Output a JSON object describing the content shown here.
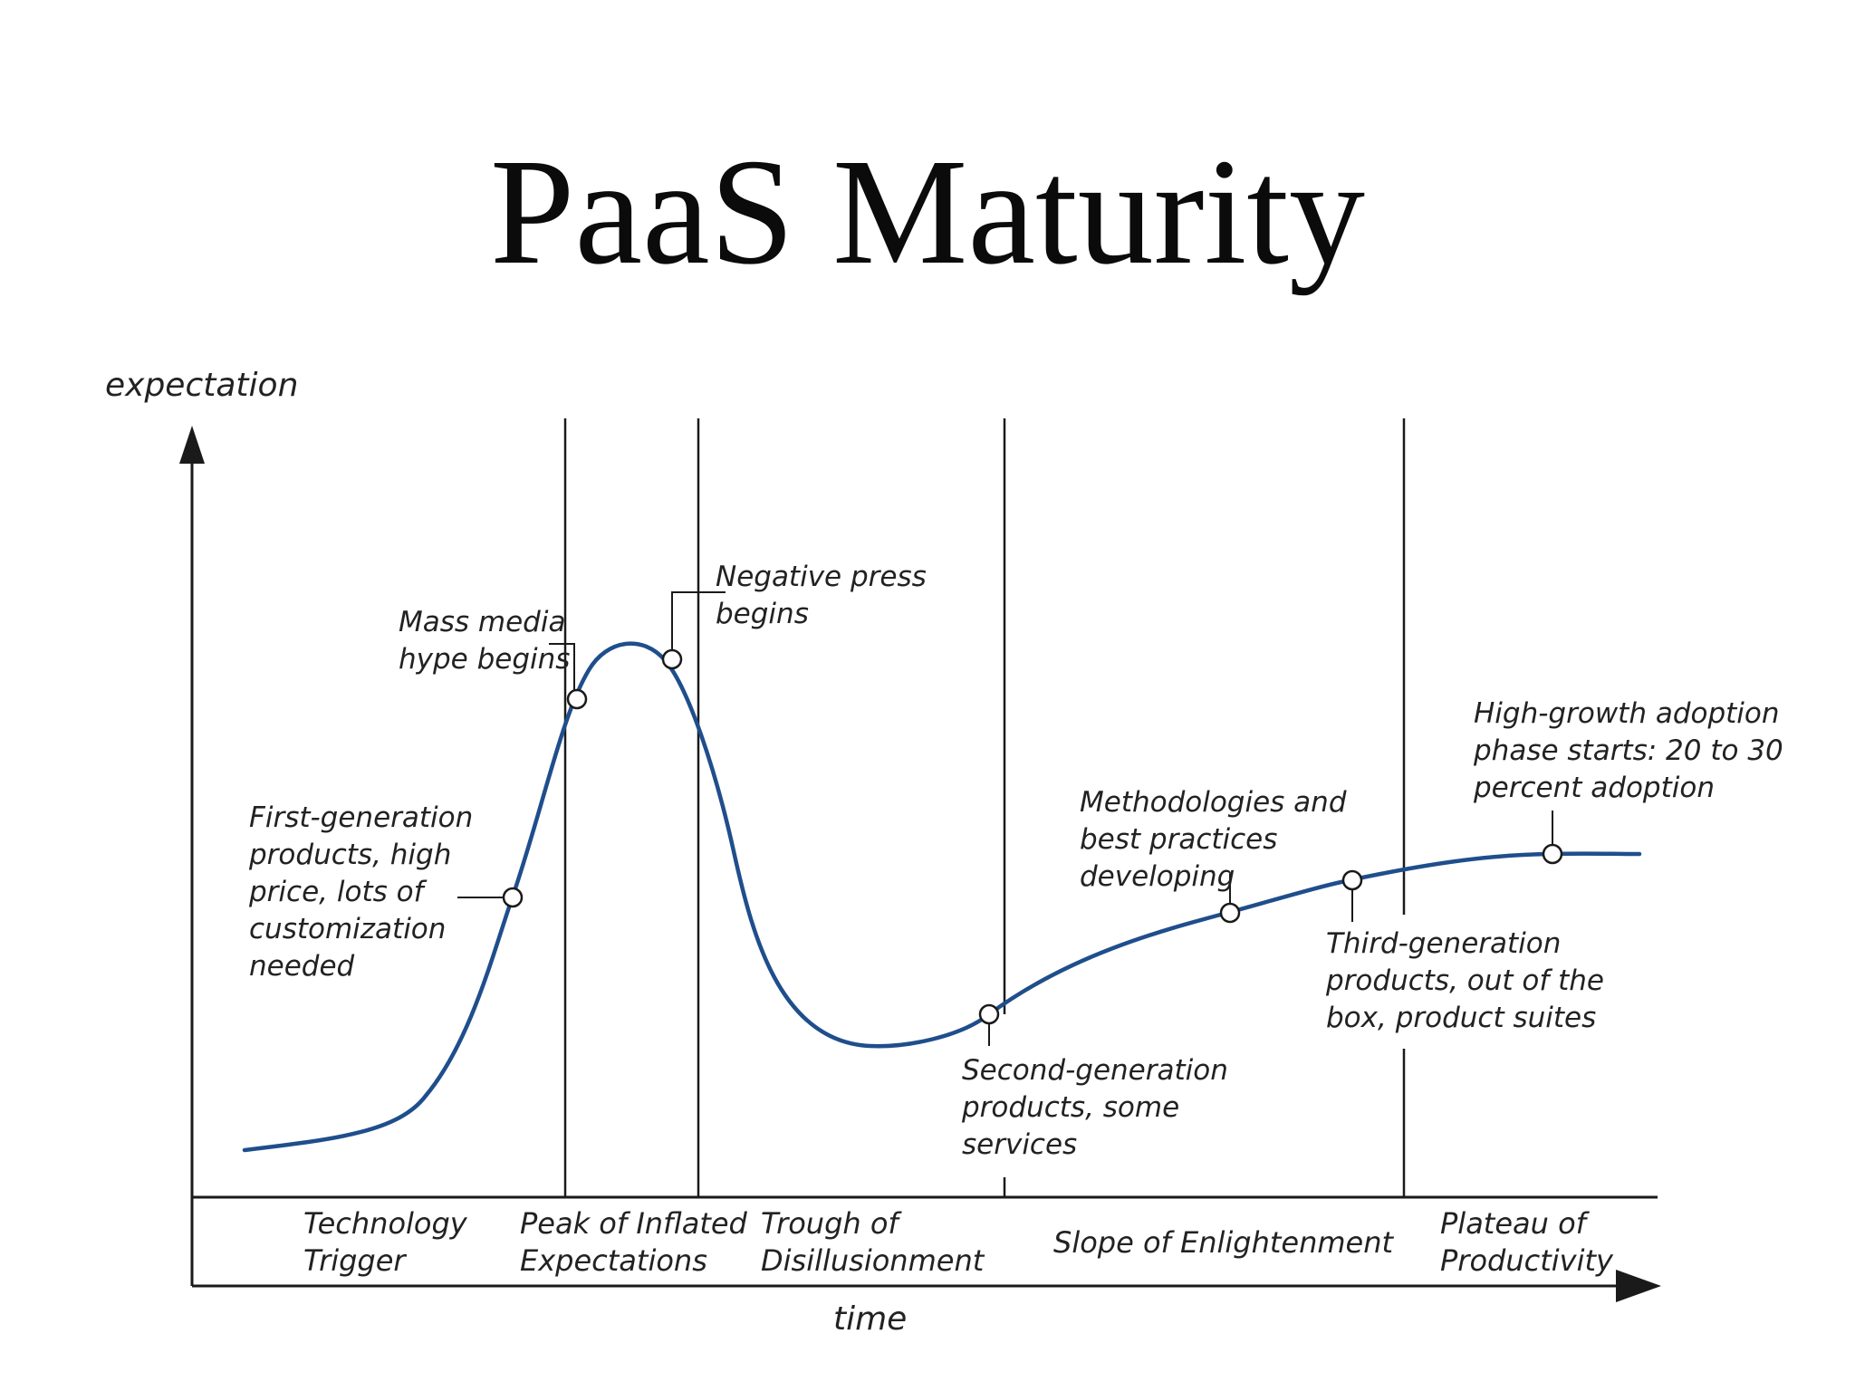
{
  "slide": {
    "title": "PaaS Maturity"
  },
  "colors": {
    "curve": "#1f4e8c",
    "ink": "#1a1a1a"
  },
  "axes": {
    "y_label": "expectation",
    "x_label": "time"
  },
  "phases": [
    {
      "lines": [
        "Technology",
        "Trigger"
      ]
    },
    {
      "lines": [
        "Peak of Inflated",
        "Expectations"
      ]
    },
    {
      "lines": [
        "Trough of",
        "Disillusionment"
      ]
    },
    {
      "lines": [
        "Slope of Enlightenment"
      ]
    },
    {
      "lines": [
        "Plateau of",
        "Productivity"
      ]
    }
  ],
  "annotations": [
    {
      "lines": [
        "First-generation",
        "products, high",
        "price, lots of",
        "customization",
        "needed"
      ]
    },
    {
      "lines": [
        "Mass media",
        "hype begins"
      ]
    },
    {
      "lines": [
        "Negative press",
        "begins"
      ]
    },
    {
      "lines": [
        "Second-generation",
        "products, some",
        "services"
      ]
    },
    {
      "lines": [
        "Methodologies and",
        "best practices",
        "developing"
      ]
    },
    {
      "lines": [
        "Third-generation",
        "products, out of the",
        "box, product suites"
      ]
    },
    {
      "lines": [
        "High-growth adoption",
        "phase starts: 20 to 30",
        "percent adoption"
      ]
    }
  ]
}
